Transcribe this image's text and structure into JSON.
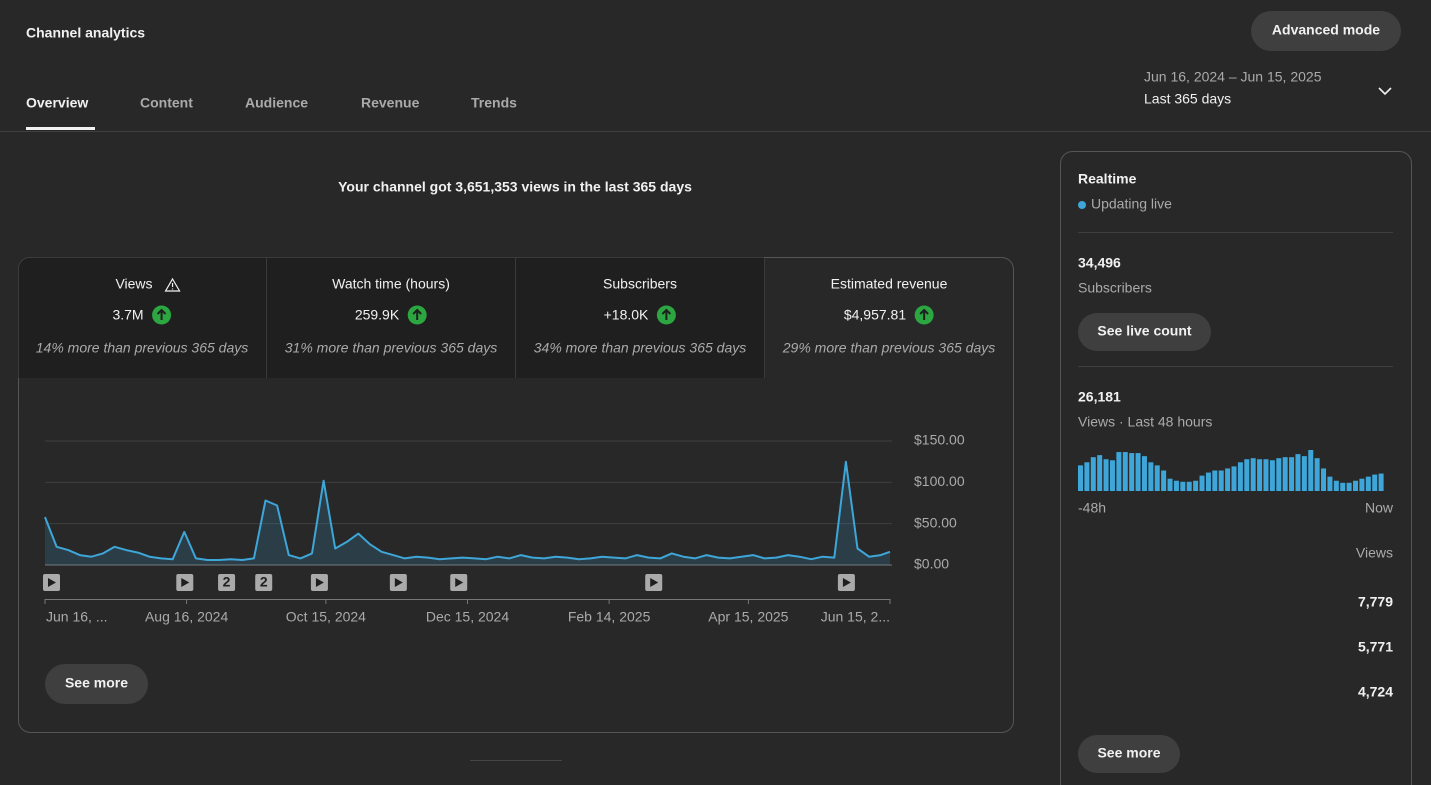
{
  "header": {
    "title": "Channel analytics",
    "button": "Advanced mode"
  },
  "tabs": [
    "Overview",
    "Content",
    "Audience",
    "Revenue",
    "Trends"
  ],
  "date_range": {
    "range": "Jun 16, 2024 – Jun 15, 2025",
    "label": "Last 365 days"
  },
  "headline": "Your channel got 3,651,353 views in the last 365 days",
  "metrics": [
    {
      "label": "Views",
      "value": "3.7M",
      "note": "14% more than previous 365 days"
    },
    {
      "label": "Watch time (hours)",
      "value": "259.9K",
      "note": "31% more than previous 365 days"
    },
    {
      "label": "Subscribers",
      "value": "+18.0K",
      "note": "34% more than previous 365 days"
    },
    {
      "label": "Estimated revenue",
      "value": "$4,957.81",
      "note": "29% more than previous 365 days"
    }
  ],
  "chart_data": [
    {
      "type": "line",
      "x": [
        0,
        5,
        10,
        15,
        20,
        25,
        30,
        35,
        40,
        45,
        50,
        55,
        60,
        65,
        70,
        75,
        80,
        85,
        90,
        95,
        100,
        105,
        110,
        115,
        120,
        125,
        130,
        135,
        140,
        145,
        150,
        155,
        160,
        165,
        170,
        175,
        180,
        185,
        190,
        195,
        200,
        205,
        210,
        215,
        220,
        225,
        230,
        235,
        240,
        245,
        250,
        255,
        260,
        265,
        270,
        275,
        280,
        285,
        290,
        295,
        300,
        305,
        310,
        315,
        320,
        325,
        330,
        335,
        340,
        345,
        350,
        355,
        360,
        364
      ],
      "series": [
        {
          "color": "#3ea6d8",
          "values": [
            58,
            22,
            18,
            12,
            10,
            14,
            22,
            18,
            15,
            10,
            8,
            7,
            40,
            8,
            6,
            6,
            7,
            6,
            8,
            78,
            72,
            12,
            8,
            14,
            102,
            20,
            28,
            38,
            25,
            16,
            12,
            8,
            10,
            9,
            7,
            8,
            9,
            8,
            7,
            10,
            8,
            12,
            9,
            8,
            10,
            9,
            7,
            8,
            10,
            9,
            8,
            12,
            9,
            8,
            14,
            10,
            8,
            12,
            9,
            8,
            10,
            12,
            8,
            9,
            12,
            10,
            7,
            10,
            9,
            125,
            20,
            10,
            12,
            16
          ]
        }
      ],
      "xlim": [
        0,
        364
      ],
      "xticks": [
        {
          "value": 0,
          "label": "Jun 16, ..."
        },
        {
          "value": 61,
          "label": "Aug 16, 2024"
        },
        {
          "value": 121,
          "label": "Oct 15, 2024"
        },
        {
          "value": 182,
          "label": "Dec 15, 2024"
        },
        {
          "value": 243,
          "label": "Feb 14, 2025"
        },
        {
          "value": 303,
          "label": "Apr 15, 2025"
        },
        {
          "value": 364,
          "label": "Jun 15, 2..."
        }
      ],
      "ylim": [
        0,
        150
      ],
      "yticks": [
        {
          "value": 0,
          "label": "$0.00"
        },
        {
          "value": 50,
          "label": "$50.00"
        },
        {
          "value": 100,
          "label": "$100.00"
        },
        {
          "value": 150,
          "label": "$150.00"
        }
      ],
      "grid": true,
      "video_markers": [
        0,
        60,
        118,
        152,
        178,
        262,
        345
      ],
      "badges": [
        {
          "x": 78,
          "label": "2"
        },
        {
          "x": 94,
          "label": "2"
        }
      ]
    },
    {
      "type": "bar",
      "color": "#3ea6d8",
      "values": [
        500,
        560,
        660,
        700,
        620,
        600,
        760,
        760,
        740,
        740,
        680,
        560,
        500,
        400,
        240,
        200,
        180,
        180,
        200,
        300,
        360,
        400,
        400,
        440,
        480,
        560,
        620,
        640,
        620,
        620,
        600,
        640,
        660,
        660,
        720,
        680,
        800,
        640,
        440,
        280,
        200,
        160,
        160,
        200,
        240,
        280,
        320,
        340
      ],
      "x_labels": [
        "-48h",
        "Now"
      ]
    }
  ],
  "see_more": "See more",
  "realtime": {
    "title": "Realtime",
    "status": "Updating live",
    "subscribers": "34,496",
    "subscribers_label": "Subscribers",
    "live_button": "See live count",
    "views": "26,181",
    "views_label": "Views · Last 48 hours",
    "top_header": "Views",
    "top_values": [
      "7,779",
      "5,771",
      "4,724"
    ],
    "see_more": "See more"
  }
}
